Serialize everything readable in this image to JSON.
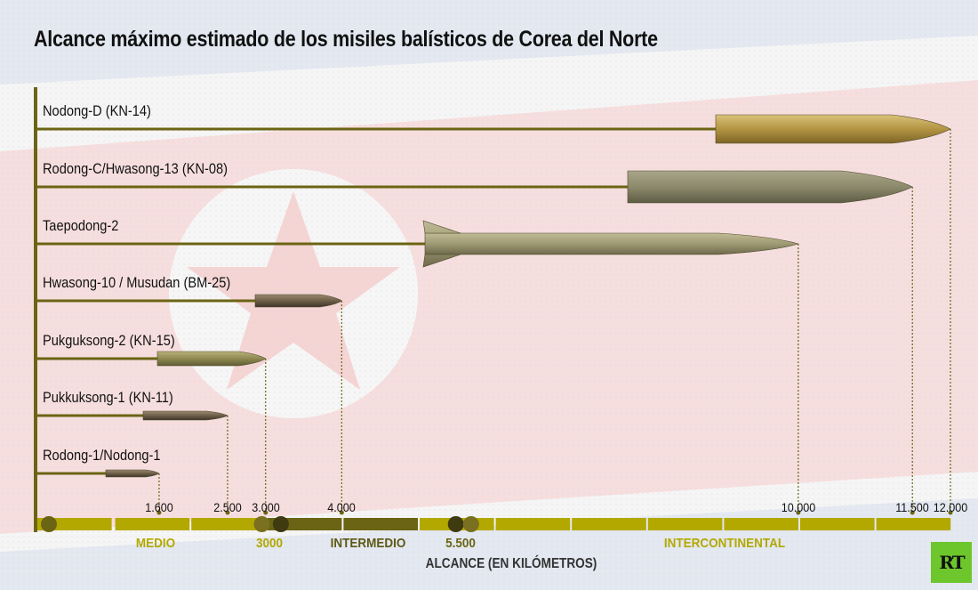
{
  "chart_data": {
    "type": "bar",
    "title": "Alcance máximo estimado de los misiles balísticos de Corea del Norte",
    "xlabel": "ALCANCE (EN KILÓMETROS)",
    "xlim": [
      0,
      12000
    ],
    "orientation": "horizontal",
    "categories": [
      "Nodong-D (KN-14)",
      "Rodong-C/Hwasong-13 (KN-08)",
      "Taepodong-2",
      "Hwasong-10 / Musudan (BM-25)",
      "Pukguksong-2 (KN-15)",
      "Pukkuksong-1 (KN-11)",
      "Rodong-1/Nodong-1"
    ],
    "values": [
      12000,
      11500,
      10000,
      4000,
      3000,
      2500,
      1600
    ],
    "tick_labels": [
      "1.600",
      "2.500",
      "3.000",
      "4.000",
      "10.000",
      "11.500",
      "12.000"
    ],
    "tick_values": [
      1600,
      2500,
      3000,
      4000,
      10000,
      11500,
      12000
    ],
    "range_categories": [
      {
        "label": "MEDIO",
        "color": "#b3a800"
      },
      {
        "label": "3000",
        "color": "#b3a800"
      },
      {
        "label": "INTERMEDIO",
        "color": "#5e5814"
      },
      {
        "label": "5.500",
        "color": "#6b6414"
      },
      {
        "label": "INTERCONTINENTAL",
        "color": "#b3a800"
      }
    ],
    "range_boundaries": [
      0,
      3000,
      5500,
      12000
    ],
    "colors": {
      "axis": "#6b6414",
      "medio": "#b3a800",
      "intermedio": "#6b6414"
    }
  },
  "logo": "RT"
}
